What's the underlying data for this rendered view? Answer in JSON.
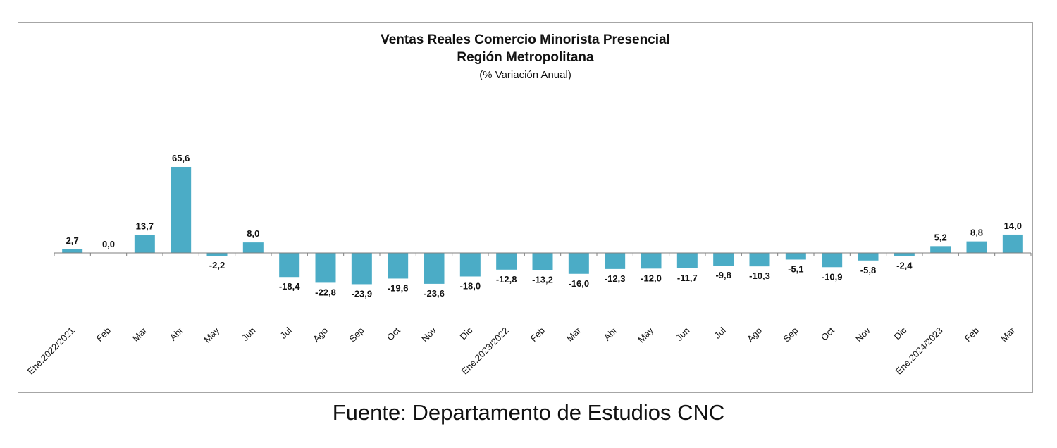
{
  "chart_data": {
    "type": "bar",
    "title_line1": "Ventas Reales Comercio Minorista Presencial",
    "title_line2": "Región Metropolitana",
    "subtitle": "(% Variación Anual)",
    "categories": [
      "Ene.2022/2021",
      "Feb",
      "Mar",
      "Abr",
      "May",
      "Jun",
      "Jul",
      "Ago",
      "Sep",
      "Oct",
      "Nov",
      "Dic",
      "Ene.2023/2022",
      "Feb",
      "Mar",
      "Abr",
      "May",
      "Jun",
      "Jul",
      "Ago",
      "Sep",
      "Oct",
      "Nov",
      "Dic",
      "Ene.2024/2023",
      "Feb",
      "Mar"
    ],
    "values": [
      2.7,
      0.0,
      13.7,
      65.6,
      -2.2,
      8.0,
      -18.4,
      -22.8,
      -23.9,
      -19.6,
      -23.6,
      -18.0,
      -12.8,
      -13.2,
      -16.0,
      -12.3,
      -12.0,
      -11.7,
      -9.8,
      -10.3,
      -5.1,
      -10.9,
      -5.8,
      -2.4,
      5.2,
      8.8,
      14.0
    ],
    "labels": [
      "2,7",
      "0,0",
      "13,7",
      "65,6",
      "-2,2",
      "8,0",
      "-18,4",
      "-22,8",
      "-23,9",
      "-19,6",
      "-23,6",
      "-18,0",
      "-12,8",
      "-13,2",
      "-16,0",
      "-12,3",
      "-12,0",
      "-11,7",
      "-9,8",
      "-10,3",
      "-5,1",
      "-10,9",
      "-5,8",
      "-2,4",
      "5,2",
      "8,8",
      "14,0"
    ],
    "bar_color": "#4bacc6",
    "grid": false,
    "legend": "none"
  },
  "source": "Fuente: Departamento de Estudios CNC"
}
